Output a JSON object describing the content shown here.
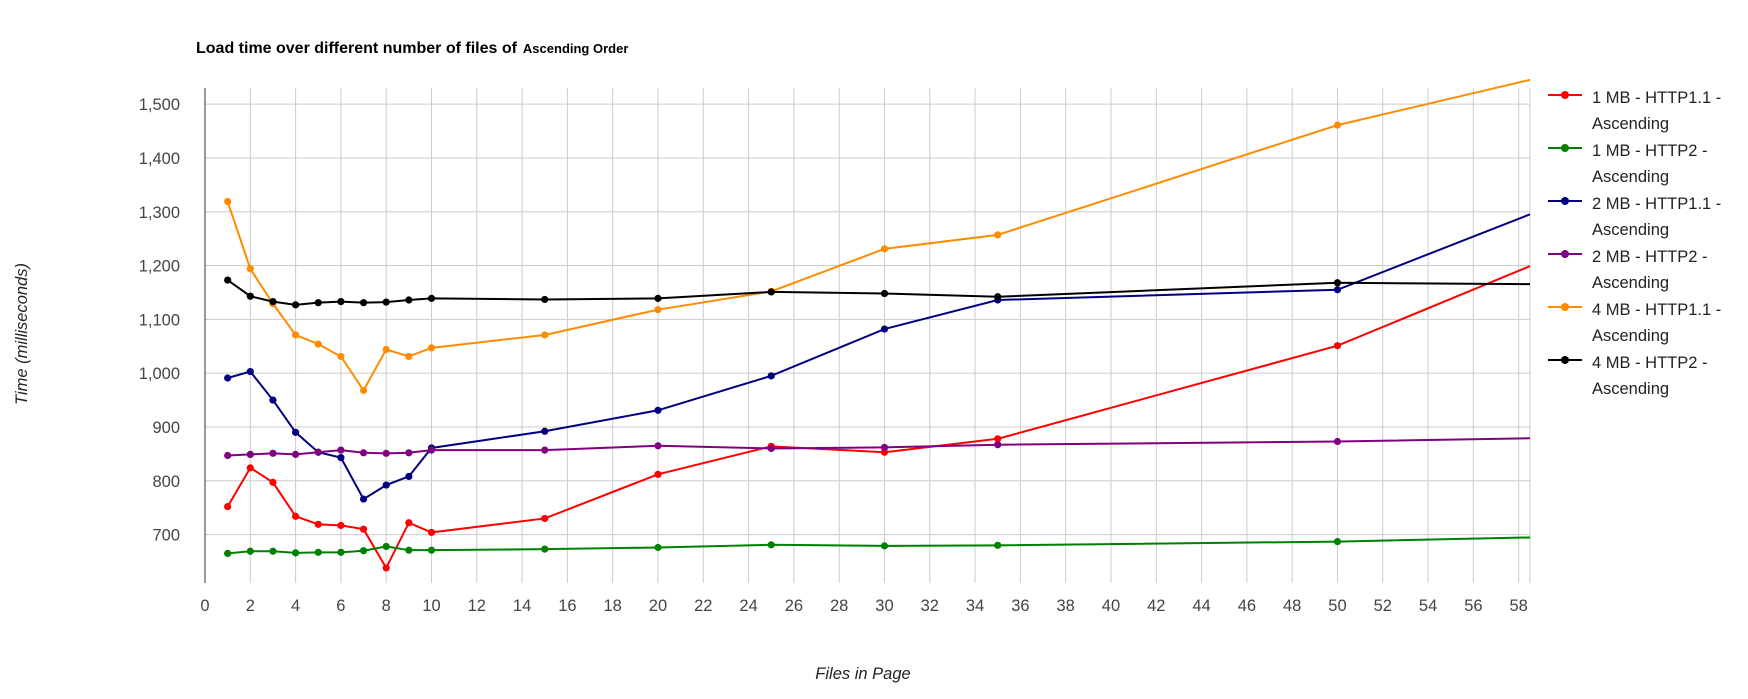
{
  "chart_data": {
    "type": "line",
    "title": "Load time over different number of files of",
    "subtitle": "Ascending Order",
    "xlabel": "Files in Page",
    "ylabel": "Time (milliseconds)",
    "xlim": [
      0,
      58.5
    ],
    "ylim": [
      610,
      1530
    ],
    "xticks": [
      0,
      2,
      4,
      6,
      8,
      10,
      12,
      14,
      16,
      18,
      20,
      22,
      24,
      26,
      28,
      30,
      32,
      34,
      36,
      38,
      40,
      42,
      44,
      46,
      48,
      50,
      52,
      54,
      56,
      58
    ],
    "yticks": [
      700,
      800,
      900,
      1000,
      1100,
      1200,
      1300,
      1400,
      1500
    ],
    "ytick_labels": [
      "700",
      "800",
      "900",
      "1,000",
      "1,100",
      "1,200",
      "1,300",
      "1,400",
      "1,500"
    ],
    "grid": true,
    "legend_position": "right",
    "x": [
      1,
      2,
      3,
      4,
      5,
      6,
      7,
      8,
      9,
      10,
      15,
      20,
      25,
      30,
      35,
      50,
      60
    ],
    "series": [
      {
        "name": "1 MB - HTTP1.1 - Ascending",
        "color": "#ff0000",
        "values": [
          752,
          824,
          797,
          734,
          719,
          717,
          710,
          638,
          722,
          704,
          730,
          812,
          864,
          853,
          878,
          1051,
          1225
        ]
      },
      {
        "name": "1 MB - HTTP2 - Ascending",
        "color": "#008000",
        "values": [
          665,
          669,
          669,
          666,
          667,
          667,
          670,
          678,
          671,
          671,
          673,
          676,
          681,
          679,
          680,
          687,
          696
        ]
      },
      {
        "name": "2 MB - HTTP1.1 - Ascending",
        "color": "#000080",
        "values": [
          991,
          1003,
          950,
          890,
          853,
          843,
          766,
          792,
          808,
          861,
          892,
          931,
          995,
          1082,
          1136,
          1155,
          1320
        ]
      },
      {
        "name": "2 MB - HTTP2 - Ascending",
        "color": "#800080",
        "values": [
          847,
          849,
          851,
          849,
          853,
          857,
          852,
          851,
          852,
          857,
          857,
          865,
          860,
          862,
          867,
          873,
          880
        ]
      },
      {
        "name": "4 MB - HTTP1.1 - Ascending",
        "color": "#ff8c00",
        "values": [
          1319,
          1194,
          1129,
          1071,
          1054,
          1031,
          968,
          1044,
          1031,
          1047,
          1071,
          1118,
          1152,
          1231,
          1257,
          1461,
          1560
        ]
      },
      {
        "name": "4 MB - HTTP2 - Ascending",
        "color": "#000000",
        "values": [
          1173,
          1143,
          1133,
          1127,
          1131,
          1133,
          1131,
          1132,
          1136,
          1139,
          1137,
          1139,
          1151,
          1148,
          1142,
          1168,
          1165
        ]
      }
    ]
  }
}
